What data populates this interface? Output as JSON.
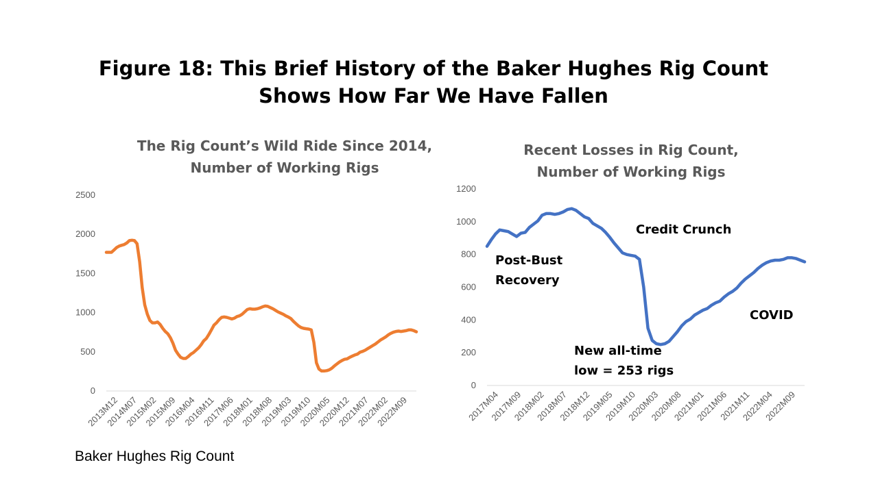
{
  "title_line1": "Figure 18: This Brief History of the Baker Hughes Rig Count",
  "title_line2": "Shows How Far We Have Fallen",
  "source": "Baker Hughes Rig Count",
  "colors": {
    "left_series": "#ED7D31",
    "right_series": "#4472C4",
    "axis": "#D9D9D9",
    "title_gray": "#595959"
  },
  "chart_data": [
    {
      "type": "line",
      "title_line1": "The Rig Count’s Wild Ride Since 2014,",
      "title_line2": "Number of Working Rigs",
      "ylim": [
        0,
        2500
      ],
      "yticks": [
        0,
        500,
        1000,
        1500,
        2000,
        2500
      ],
      "x_tick_labels": [
        "2013M12",
        "2014M07",
        "2015M02",
        "2015M09",
        "2016M04",
        "2016M11",
        "2017M06",
        "2018M01",
        "2018M08",
        "2019M03",
        "2019M10",
        "2020M05",
        "2020M12",
        "2021M07",
        "2022M02",
        "2022M09"
      ],
      "x_start": "2013M12",
      "grid": false,
      "series": [
        {
          "values": [
            1770,
            1770,
            1770,
            1800,
            1830,
            1850,
            1860,
            1870,
            1890,
            1920,
            1925,
            1920,
            1880,
            1650,
            1320,
            1100,
            980,
            900,
            870,
            870,
            880,
            850,
            800,
            760,
            730,
            680,
            610,
            520,
            470,
            430,
            415,
            415,
            440,
            470,
            490,
            520,
            550,
            590,
            640,
            670,
            720,
            780,
            840,
            870,
            910,
            940,
            945,
            940,
            930,
            920,
            930,
            950,
            960,
            980,
            1010,
            1040,
            1050,
            1045,
            1045,
            1050,
            1060,
            1075,
            1085,
            1080,
            1065,
            1050,
            1030,
            1010,
            995,
            980,
            960,
            945,
            925,
            890,
            860,
            830,
            810,
            800,
            795,
            790,
            780,
            620,
            360,
            280,
            255,
            255,
            260,
            270,
            290,
            320,
            345,
            370,
            390,
            405,
            410,
            430,
            445,
            460,
            470,
            495,
            505,
            520,
            540,
            560,
            580,
            600,
            625,
            650,
            670,
            690,
            715,
            735,
            750,
            760,
            765,
            760,
            765,
            770,
            780,
            780,
            770,
            755
          ]
        }
      ]
    },
    {
      "type": "line",
      "title_line1": "Recent Losses in Rig Count,",
      "title_line2": "Number of Working Rigs",
      "ylim": [
        0,
        1200
      ],
      "yticks": [
        0,
        200,
        400,
        600,
        800,
        1000,
        1200
      ],
      "x_tick_labels": [
        "2017M04",
        "2017M09",
        "2018M02",
        "2018M07",
        "2018M12",
        "2019M05",
        "2019M10",
        "2020M03",
        "2020M08",
        "2021M01",
        "2021M06",
        "2021M11",
        "2022M04",
        "2022M09"
      ],
      "x_start": "2017M04",
      "grid": false,
      "series": [
        {
          "values": [
            850,
            890,
            925,
            950,
            945,
            940,
            925,
            910,
            930,
            935,
            965,
            985,
            1005,
            1040,
            1050,
            1050,
            1045,
            1050,
            1060,
            1075,
            1080,
            1070,
            1050,
            1030,
            1020,
            990,
            975,
            960,
            935,
            905,
            870,
            840,
            810,
            800,
            795,
            790,
            770,
            600,
            350,
            275,
            255,
            250,
            255,
            270,
            300,
            330,
            365,
            390,
            405,
            430,
            445,
            460,
            470,
            490,
            505,
            515,
            540,
            560,
            575,
            595,
            625,
            650,
            670,
            690,
            715,
            735,
            750,
            760,
            765,
            765,
            770,
            780,
            780,
            775,
            765,
            755
          ]
        }
      ],
      "annotations": [
        {
          "line1": "Post-Bust",
          "line2": "Recovery"
        },
        {
          "line1": "Credit Crunch",
          "line2": ""
        },
        {
          "line1": "New all-time",
          "line2": "low = 253 rigs"
        },
        {
          "line1": "COVID",
          "line2": ""
        }
      ]
    }
  ]
}
